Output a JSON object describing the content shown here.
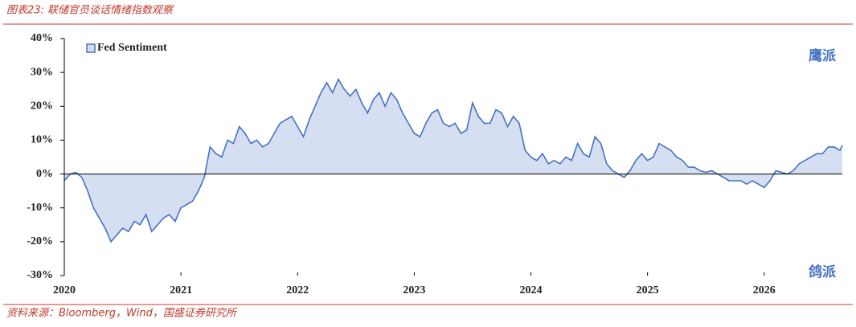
{
  "header": {
    "title": "图表23: 联储官员谈话情绪指数观察"
  },
  "chart_data": {
    "type": "area",
    "x": [
      2020.0,
      2020.05,
      2020.1,
      2020.15,
      2020.2,
      2020.25,
      2020.3,
      2020.35,
      2020.4,
      2020.45,
      2020.5,
      2020.55,
      2020.6,
      2020.65,
      2020.7,
      2020.75,
      2020.8,
      2020.85,
      2020.9,
      2020.95,
      2021.0,
      2021.05,
      2021.1,
      2021.15,
      2021.2,
      2021.25,
      2021.3,
      2021.35,
      2021.4,
      2021.45,
      2021.5,
      2021.55,
      2021.6,
      2021.65,
      2021.7,
      2021.75,
      2021.8,
      2021.85,
      2021.9,
      2021.95,
      2022.0,
      2022.05,
      2022.1,
      2022.15,
      2022.2,
      2022.25,
      2022.3,
      2022.35,
      2022.4,
      2022.45,
      2022.5,
      2022.55,
      2022.6,
      2022.65,
      2022.7,
      2022.75,
      2022.8,
      2022.85,
      2022.9,
      2022.95,
      2023.0,
      2023.05,
      2023.1,
      2023.15,
      2023.2,
      2023.25,
      2023.3,
      2023.35,
      2023.4,
      2023.45,
      2023.5,
      2023.55,
      2023.6,
      2023.65,
      2023.7,
      2023.75,
      2023.8,
      2023.85,
      2023.9,
      2023.95,
      2024.0,
      2024.05,
      2024.1,
      2024.15,
      2024.2,
      2024.25,
      2024.3,
      2024.35,
      2024.4,
      2024.45,
      2024.5,
      2024.55,
      2024.6,
      2024.65,
      2024.7,
      2024.75,
      2024.8,
      2024.85,
      2024.9,
      2024.95,
      2025.0,
      2025.05,
      2025.1,
      2025.15,
      2025.2,
      2025.25,
      2025.3,
      2025.35,
      2025.4,
      2025.45,
      2025.5,
      2025.55,
      2025.6,
      2025.65,
      2025.7,
      2025.75,
      2025.8,
      2025.85,
      2025.9,
      2025.95,
      2026.0,
      2026.05,
      2026.1,
      2026.15,
      2026.2,
      2026.25,
      2026.3,
      2026.35,
      2026.4,
      2026.45,
      2026.5,
      2026.55,
      2026.6,
      2026.65,
      2026.67
    ],
    "series": [
      {
        "name": "Fed Sentiment",
        "color": "#4472c4",
        "fill": "#d6dff2",
        "values": [
          -2,
          0,
          0.5,
          -1,
          -5,
          -10,
          -13,
          -16,
          -20,
          -18,
          -16,
          -17,
          -14,
          -15,
          -12,
          -17,
          -15,
          -13,
          -12,
          -14,
          -10,
          -9,
          -8,
          -5,
          -1,
          8,
          6,
          5,
          10,
          9,
          14,
          12,
          9,
          10,
          8,
          9,
          12,
          15,
          16,
          17,
          14,
          11,
          16,
          20,
          24,
          27,
          24,
          28,
          25,
          23,
          25,
          21,
          18,
          22,
          24,
          20,
          24,
          22,
          18,
          15,
          12,
          11,
          15,
          18,
          19,
          15,
          14,
          15,
          12,
          13,
          21,
          17,
          15,
          15,
          19,
          18,
          14,
          17,
          15,
          7,
          5,
          4,
          6,
          3,
          4,
          3,
          5,
          4,
          9,
          6,
          5,
          11,
          9,
          3,
          1,
          0,
          -1,
          1,
          4,
          6,
          4,
          5,
          9,
          8,
          7,
          5,
          4,
          2,
          2,
          1,
          0.5,
          1,
          0,
          -1,
          -2,
          -2,
          -2,
          -3,
          -2,
          -3,
          -4,
          -2,
          1,
          0.5,
          0,
          1,
          3,
          4,
          5,
          6,
          6,
          8,
          8,
          7,
          8.5
        ]
      }
    ],
    "xlim": [
      2020,
      2026.67
    ],
    "xticks": [
      2020,
      2021,
      2022,
      2023,
      2024,
      2025,
      2026
    ],
    "ylim": [
      -30,
      40
    ],
    "yticks": [
      {
        "value": 40,
        "label": "40%"
      },
      {
        "value": 30,
        "label": "30%"
      },
      {
        "value": 20,
        "label": "20%"
      },
      {
        "value": 10,
        "label": "10%"
      },
      {
        "value": 0,
        "label": "0%"
      },
      {
        "value": -10,
        "label": "-10%"
      },
      {
        "value": -20,
        "label": "-20%"
      },
      {
        "value": -30,
        "label": "-30%"
      }
    ],
    "annotations": [
      "鹰派",
      "鸽派"
    ],
    "legend": "top-left"
  },
  "footer": {
    "source": "资料来源：Bloomberg，Wind，国盛证券研究所"
  }
}
